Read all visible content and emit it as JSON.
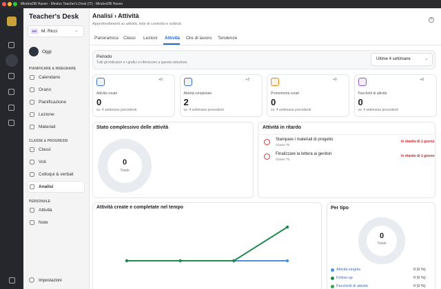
{
  "window": {
    "title": "MindooDB Haven - Mindoo Teacher's Desk (IT) - MindooDB Haven"
  },
  "sidebar": {
    "app_title": "Teacher's Desk",
    "user": {
      "initials": "MR",
      "name": "M. Ricci"
    },
    "today": "Oggi",
    "sections": [
      {
        "label": "PIANIFICARE & INSEGNARE",
        "items": [
          "Calendario",
          "Orario",
          "Pianificazione",
          "Lezione",
          "Materiali"
        ]
      },
      {
        "label": "CLASSE & PROGRESSI",
        "items": [
          "Classi",
          "Voti",
          "Colloqui & verbali",
          "Analisi"
        ]
      },
      {
        "label": "PERSONALE",
        "items": [
          "Attività",
          "Note"
        ]
      }
    ],
    "settings": "Impostazioni"
  },
  "header": {
    "title": "Analisi › Attività",
    "subtitle": "Approfondimenti su attività, liste di controllo e sollecit."
  },
  "tabs": [
    "Panoramica",
    "Classi",
    "Lezioni",
    "Attività",
    "Ore di lavoro",
    "Tendenze"
  ],
  "period": {
    "title": "Periodo",
    "description": "Tutti gli indicatori e i grafici si riferiscono a questa selezione.",
    "selected": "Ultime 4 settimane"
  },
  "stats": [
    {
      "label": "Attività create",
      "value": "0",
      "delta": "+0",
      "note": "vs. 4 settimane precedenti"
    },
    {
      "label": "Attività completate",
      "value": "2",
      "delta": "+2",
      "note": "vs. 4 settimane precedenti"
    },
    {
      "label": "Promemoria creati",
      "value": "0",
      "delta": "+0",
      "note": "vs. 4 settimane precedenti"
    },
    {
      "label": "Pacchetti di attività",
      "value": "0",
      "delta": "+0",
      "note": "vs. 4 settimane precedenti"
    }
  ],
  "overall": {
    "title": "Stato complessivo delle attività",
    "total": "0",
    "total_label": "Totale"
  },
  "overdue": {
    "title": "Attività in ritardo",
    "items": [
      {
        "title": "Stampare i materiali di progetto",
        "class": "Classe 7b",
        "status": "In ritardo di 1 giorno"
      },
      {
        "title": "Finalizzare la lettera ai genitori",
        "class": "Classe 7b",
        "status": "In ritardo di 1 giorno"
      }
    ]
  },
  "chart_data": {
    "type": "line",
    "title": "Attività create e completate nel tempo",
    "series": [
      {
        "color": "#4a8fe0",
        "values": [
          0,
          0,
          0,
          0
        ]
      },
      {
        "color": "#1f8a4c",
        "values": [
          0,
          0,
          0,
          2
        ]
      }
    ]
  },
  "by_type": {
    "title": "Per tipo",
    "total": "0",
    "total_label": "Totale",
    "legend": [
      {
        "name": "Attività singole",
        "value": "0 (0 %)",
        "color": "#4a8fe0"
      },
      {
        "name": "Follow-up",
        "value": "0 (0 %)",
        "color": "#1f8a4c"
      },
      {
        "name": "Pacchetti di attività",
        "value": "0 (0 %)",
        "color": "#2fa34f"
      }
    ]
  }
}
